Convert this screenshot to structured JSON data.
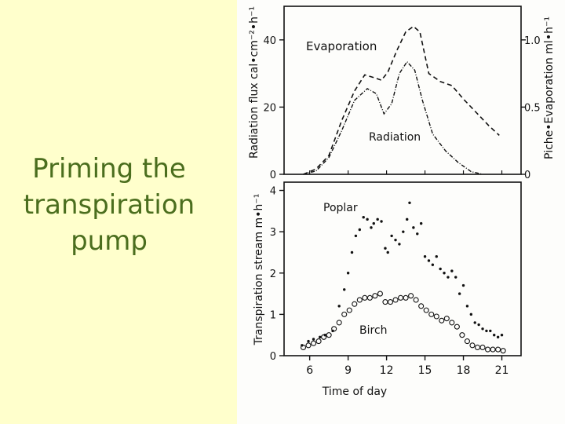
{
  "slide": {
    "title_lines": [
      "Priming the",
      "transpiration",
      "pump"
    ]
  },
  "colors": {
    "background": "#ffffcc",
    "title": "#4b6e1e",
    "ink": "#111111"
  },
  "chart_data": [
    {
      "type": "line",
      "title": "",
      "xlabel": "",
      "ylabel": "Radiation flux cal•cm⁻²•h⁻¹",
      "ylabel_right": "Piche•Evaporation ml•h⁻¹",
      "ylim": [
        0,
        50
      ],
      "ylim_right": [
        0,
        1.25
      ],
      "xlim": [
        4,
        22.5
      ],
      "yticks": [
        0,
        20,
        40
      ],
      "yticks_right": [
        0,
        0.5,
        1.0
      ],
      "ytick_labels": [
        "0",
        "20",
        "40"
      ],
      "ytick_labels_right": [
        "0",
        "0.5",
        "1.0"
      ],
      "series": [
        {
          "name": "Evaporation",
          "axis": "right",
          "style": "dashed",
          "x": [
            5.5,
            6.5,
            7.5,
            8.5,
            9.5,
            10.3,
            11,
            11.6,
            12.1,
            12.8,
            13.5,
            14.1,
            14.6,
            15.3,
            16.2,
            17.1,
            18,
            19,
            20,
            20.8
          ],
          "y": [
            0,
            0.04,
            0.14,
            0.4,
            0.62,
            0.74,
            0.72,
            0.7,
            0.76,
            0.92,
            1.06,
            1.1,
            1.06,
            0.75,
            0.69,
            0.66,
            0.56,
            0.46,
            0.36,
            0.29
          ]
        },
        {
          "name": "Radiation",
          "axis": "left",
          "style": "dash-dot",
          "x": [
            5.5,
            6.5,
            7.5,
            8.5,
            9.5,
            10.5,
            11.2,
            11.8,
            12.4,
            13,
            13.6,
            14.2,
            14.8,
            15.6,
            16.6,
            17.6,
            18.6,
            19.5
          ],
          "y": [
            0,
            1,
            5,
            13,
            22,
            25.5,
            24,
            18,
            21,
            30,
            33.5,
            31,
            22,
            12,
            7,
            3.5,
            0.8,
            0
          ]
        }
      ]
    },
    {
      "type": "scatter",
      "title": "",
      "xlabel": "Time of day",
      "ylabel": "Transpiration stream m•h⁻¹",
      "ylim": [
        0,
        4.2
      ],
      "xlim": [
        4,
        22.5
      ],
      "xticks": [
        6,
        9,
        12,
        15,
        18,
        21
      ],
      "xtick_labels": [
        "6",
        "9",
        "12",
        "15",
        "18",
        "21"
      ],
      "yticks": [
        0,
        1,
        2,
        3,
        4
      ],
      "ytick_labels": [
        "0",
        "1",
        "2",
        "3",
        "4"
      ],
      "series": [
        {
          "name": "Poplar",
          "marker": "dot",
          "x": [
            5.4,
            5.9,
            6.3,
            6.8,
            7.2,
            7.8,
            8.3,
            8.7,
            9.0,
            9.3,
            9.6,
            9.9,
            10.2,
            10.5,
            10.8,
            11.0,
            11.3,
            11.6,
            11.9,
            12.1,
            12.4,
            12.7,
            13.0,
            13.3,
            13.6,
            13.8,
            14.1,
            14.4,
            14.7,
            15.0,
            15.3,
            15.6,
            15.9,
            16.2,
            16.5,
            16.8,
            17.1,
            17.4,
            17.7,
            18.0,
            18.3,
            18.6,
            18.9,
            19.2,
            19.5,
            19.8,
            20.1,
            20.4,
            20.7,
            21.0
          ],
          "y": [
            0.25,
            0.35,
            0.4,
            0.45,
            0.5,
            0.6,
            1.2,
            1.6,
            2.0,
            2.5,
            2.9,
            3.05,
            3.35,
            3.3,
            3.1,
            3.2,
            3.3,
            3.25,
            2.6,
            2.5,
            2.9,
            2.8,
            2.7,
            3.0,
            3.3,
            3.7,
            3.1,
            2.95,
            3.2,
            2.4,
            2.3,
            2.2,
            2.4,
            2.1,
            2.0,
            1.9,
            2.05,
            1.9,
            1.5,
            1.7,
            1.2,
            1.0,
            0.8,
            0.75,
            0.65,
            0.6,
            0.6,
            0.5,
            0.45,
            0.5
          ]
        },
        {
          "name": "Birch",
          "marker": "circle",
          "x": [
            5.5,
            5.9,
            6.3,
            6.7,
            7.1,
            7.5,
            7.9,
            8.3,
            8.7,
            9.1,
            9.5,
            9.9,
            10.3,
            10.7,
            11.1,
            11.5,
            11.9,
            12.3,
            12.7,
            13.1,
            13.5,
            13.9,
            14.3,
            14.7,
            15.1,
            15.5,
            15.9,
            16.3,
            16.7,
            17.1,
            17.5,
            17.9,
            18.3,
            18.7,
            19.1,
            19.5,
            19.9,
            20.3,
            20.7,
            21.1
          ],
          "y": [
            0.2,
            0.25,
            0.3,
            0.35,
            0.45,
            0.5,
            0.65,
            0.8,
            1.0,
            1.1,
            1.25,
            1.35,
            1.4,
            1.4,
            1.45,
            1.5,
            1.3,
            1.3,
            1.35,
            1.4,
            1.4,
            1.45,
            1.35,
            1.2,
            1.1,
            1.0,
            0.95,
            0.85,
            0.9,
            0.8,
            0.7,
            0.5,
            0.35,
            0.25,
            0.2,
            0.2,
            0.15,
            0.15,
            0.15,
            0.12
          ]
        }
      ]
    }
  ]
}
